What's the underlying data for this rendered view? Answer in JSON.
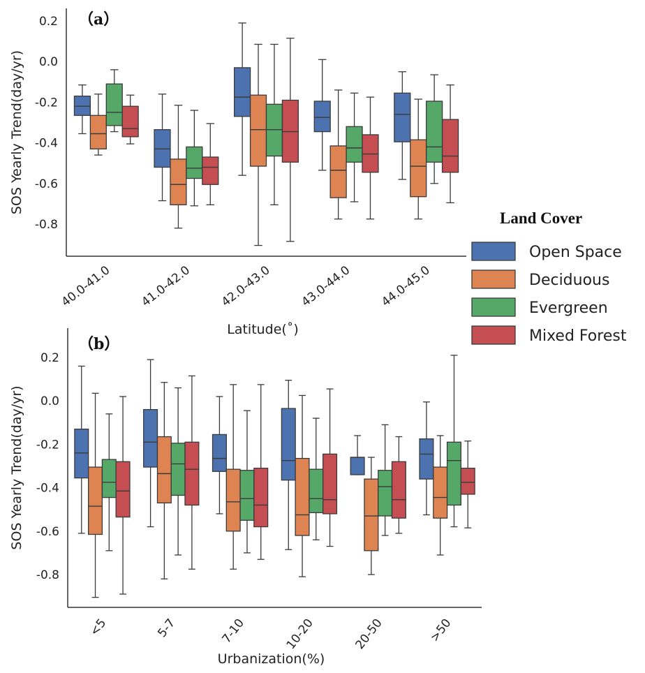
{
  "legend": {
    "title": "Land Cover",
    "items": [
      {
        "name": "Open Space",
        "color": "#4c72b0"
      },
      {
        "name": "Deciduous",
        "color": "#dd8452"
      },
      {
        "name": "Evergreen",
        "color": "#55a868"
      },
      {
        "name": "Mixed Forest",
        "color": "#c44e52"
      }
    ]
  },
  "chart_data": [
    {
      "type": "box",
      "panel_label": "（a）",
      "xlabel": "Latitude(˚)",
      "ylabel": "SOS Yearly Trend(day/yr)",
      "ylim": [
        -0.95,
        0.23
      ],
      "yticks": [
        "0.2",
        "0.0",
        "-0.2",
        "-0.4",
        "-0.6",
        "-0.8"
      ],
      "ytick_values": [
        0.2,
        0.0,
        -0.2,
        -0.4,
        -0.6,
        -0.8
      ],
      "grid": false,
      "legend_placement": "right",
      "categories": [
        "40.0-41.0",
        "41.0-42.0",
        "42.0-43.0",
        "43.0-44.0",
        "44.0-45.0"
      ],
      "series": [
        {
          "name": "Open Space",
          "boxes": [
            {
              "whislo": -0.355,
              "q1": -0.265,
              "med": -0.22,
              "q3": -0.17,
              "whishi": -0.115
            },
            {
              "whislo": -0.685,
              "q1": -0.52,
              "med": -0.43,
              "q3": -0.335,
              "whishi": -0.16
            },
            {
              "whislo": -0.56,
              "q1": -0.27,
              "med": -0.175,
              "q3": -0.03,
              "whishi": 0.19
            },
            {
              "whislo": -0.535,
              "q1": -0.345,
              "med": -0.275,
              "q3": -0.195,
              "whishi": 0.01
            },
            {
              "whislo": -0.58,
              "q1": -0.395,
              "med": -0.26,
              "q3": -0.155,
              "whishi": -0.05
            }
          ]
        },
        {
          "name": "Deciduous",
          "boxes": [
            {
              "whislo": -0.46,
              "q1": -0.43,
              "med": -0.355,
              "q3": -0.265,
              "whishi": -0.16
            },
            {
              "whislo": -0.82,
              "q1": -0.705,
              "med": -0.605,
              "q3": -0.48,
              "whishi": -0.215
            },
            {
              "whislo": -0.905,
              "q1": -0.515,
              "med": -0.335,
              "q3": -0.165,
              "whishi": 0.085
            },
            {
              "whislo": -0.775,
              "q1": -0.67,
              "med": -0.535,
              "q3": -0.415,
              "whishi": -0.14
            },
            {
              "whislo": -0.775,
              "q1": -0.665,
              "med": -0.515,
              "q3": -0.385,
              "whishi": -0.185
            }
          ]
        },
        {
          "name": "Evergreen",
          "boxes": [
            {
              "whislo": -0.345,
              "q1": -0.315,
              "med": -0.25,
              "q3": -0.11,
              "whishi": -0.04
            },
            {
              "whislo": -0.71,
              "q1": -0.575,
              "med": -0.525,
              "q3": -0.42,
              "whishi": -0.24
            },
            {
              "whislo": -0.705,
              "q1": -0.465,
              "med": -0.335,
              "q3": -0.21,
              "whishi": 0.085
            },
            {
              "whislo": -0.69,
              "q1": -0.495,
              "med": -0.425,
              "q3": -0.32,
              "whishi": -0.155
            },
            {
              "whislo": -0.6,
              "q1": -0.495,
              "med": -0.42,
              "q3": -0.195,
              "whishi": -0.065
            }
          ]
        },
        {
          "name": "Mixed Forest",
          "boxes": [
            {
              "whislo": -0.405,
              "q1": -0.37,
              "med": -0.33,
              "q3": -0.22,
              "whishi": -0.165
            },
            {
              "whislo": -0.705,
              "q1": -0.605,
              "med": -0.52,
              "q3": -0.47,
              "whishi": -0.305
            },
            {
              "whislo": -0.885,
              "q1": -0.495,
              "med": -0.345,
              "q3": -0.19,
              "whishi": 0.115
            },
            {
              "whislo": -0.775,
              "q1": -0.545,
              "med": -0.455,
              "q3": -0.36,
              "whishi": -0.175
            },
            {
              "whislo": -0.695,
              "q1": -0.545,
              "med": -0.465,
              "q3": -0.285,
              "whishi": -0.115
            }
          ]
        }
      ]
    },
    {
      "type": "box",
      "panel_label": "（b）",
      "xlabel": "Urbanization(%)",
      "ylabel": "SOS Yearly Trend(day/yr)",
      "ylim": [
        -0.95,
        0.25
      ],
      "yticks": [
        "0.2",
        "0.0",
        "-0.2",
        "-0.4",
        "-0.6",
        "-0.8"
      ],
      "ytick_values": [
        0.2,
        0.0,
        -0.2,
        -0.4,
        -0.6,
        -0.8
      ],
      "grid": false,
      "categories": [
        "<5",
        "5-7",
        "7-10",
        "10-20",
        "20-50",
        ">50"
      ],
      "series": [
        {
          "name": "Open Space",
          "boxes": [
            {
              "whislo": -0.61,
              "q1": -0.355,
              "med": -0.24,
              "q3": -0.13,
              "whishi": 0.16
            },
            {
              "whislo": -0.58,
              "q1": -0.305,
              "med": -0.19,
              "q3": -0.04,
              "whishi": 0.19
            },
            {
              "whislo": -0.52,
              "q1": -0.325,
              "med": -0.265,
              "q3": -0.155,
              "whishi": 0.02
            },
            {
              "whislo": -0.685,
              "q1": -0.365,
              "med": -0.275,
              "q3": -0.035,
              "whishi": 0.095
            },
            {
              "whislo": -0.34,
              "q1": -0.34,
              "med": -0.26,
              "q3": -0.26,
              "whishi": -0.16
            },
            {
              "whislo": -0.525,
              "q1": -0.36,
              "med": -0.245,
              "q3": -0.175,
              "whishi": -0.005
            }
          ]
        },
        {
          "name": "Deciduous",
          "boxes": [
            {
              "whislo": -0.905,
              "q1": -0.615,
              "med": -0.485,
              "q3": -0.305,
              "whishi": 0.035
            },
            {
              "whislo": -0.82,
              "q1": -0.47,
              "med": -0.335,
              "q3": -0.165,
              "whishi": 0.085
            },
            {
              "whislo": -0.775,
              "q1": -0.6,
              "med": -0.465,
              "q3": -0.315,
              "whishi": 0.075
            },
            {
              "whislo": -0.81,
              "q1": -0.62,
              "med": -0.525,
              "q3": -0.265,
              "whishi": 0.025
            },
            {
              "whislo": -0.8,
              "q1": -0.69,
              "med": -0.53,
              "q3": -0.36,
              "whishi": -0.26
            },
            {
              "whislo": -0.71,
              "q1": -0.54,
              "med": -0.445,
              "q3": -0.305,
              "whishi": -0.16
            }
          ]
        },
        {
          "name": "Evergreen",
          "boxes": [
            {
              "whislo": -0.69,
              "q1": -0.445,
              "med": -0.375,
              "q3": -0.27,
              "whishi": -0.06
            },
            {
              "whislo": -0.71,
              "q1": -0.435,
              "med": -0.29,
              "q3": -0.195,
              "whishi": 0.06
            },
            {
              "whislo": -0.7,
              "q1": -0.55,
              "med": -0.45,
              "q3": -0.32,
              "whishi": -0.045
            },
            {
              "whislo": -0.64,
              "q1": -0.515,
              "med": -0.45,
              "q3": -0.315,
              "whishi": -0.08
            },
            {
              "whislo": -0.62,
              "q1": -0.53,
              "med": -0.395,
              "q3": -0.32,
              "whishi": -0.11
            },
            {
              "whislo": -0.58,
              "q1": -0.48,
              "med": -0.275,
              "q3": -0.19,
              "whishi": 0.21
            }
          ]
        },
        {
          "name": "Mixed Forest",
          "boxes": [
            {
              "whislo": -0.89,
              "q1": -0.535,
              "med": -0.415,
              "q3": -0.28,
              "whishi": 0.02
            },
            {
              "whislo": -0.775,
              "q1": -0.48,
              "med": -0.315,
              "q3": -0.19,
              "whishi": 0.115
            },
            {
              "whislo": -0.73,
              "q1": -0.58,
              "med": -0.48,
              "q3": -0.31,
              "whishi": 0.075
            },
            {
              "whislo": -0.67,
              "q1": -0.52,
              "med": -0.455,
              "q3": -0.245,
              "whishi": 0.055
            },
            {
              "whislo": -0.61,
              "q1": -0.54,
              "med": -0.455,
              "q3": -0.28,
              "whishi": -0.165
            },
            {
              "whislo": -0.585,
              "q1": -0.43,
              "med": -0.375,
              "q3": -0.31,
              "whishi": -0.185
            }
          ]
        }
      ]
    }
  ]
}
